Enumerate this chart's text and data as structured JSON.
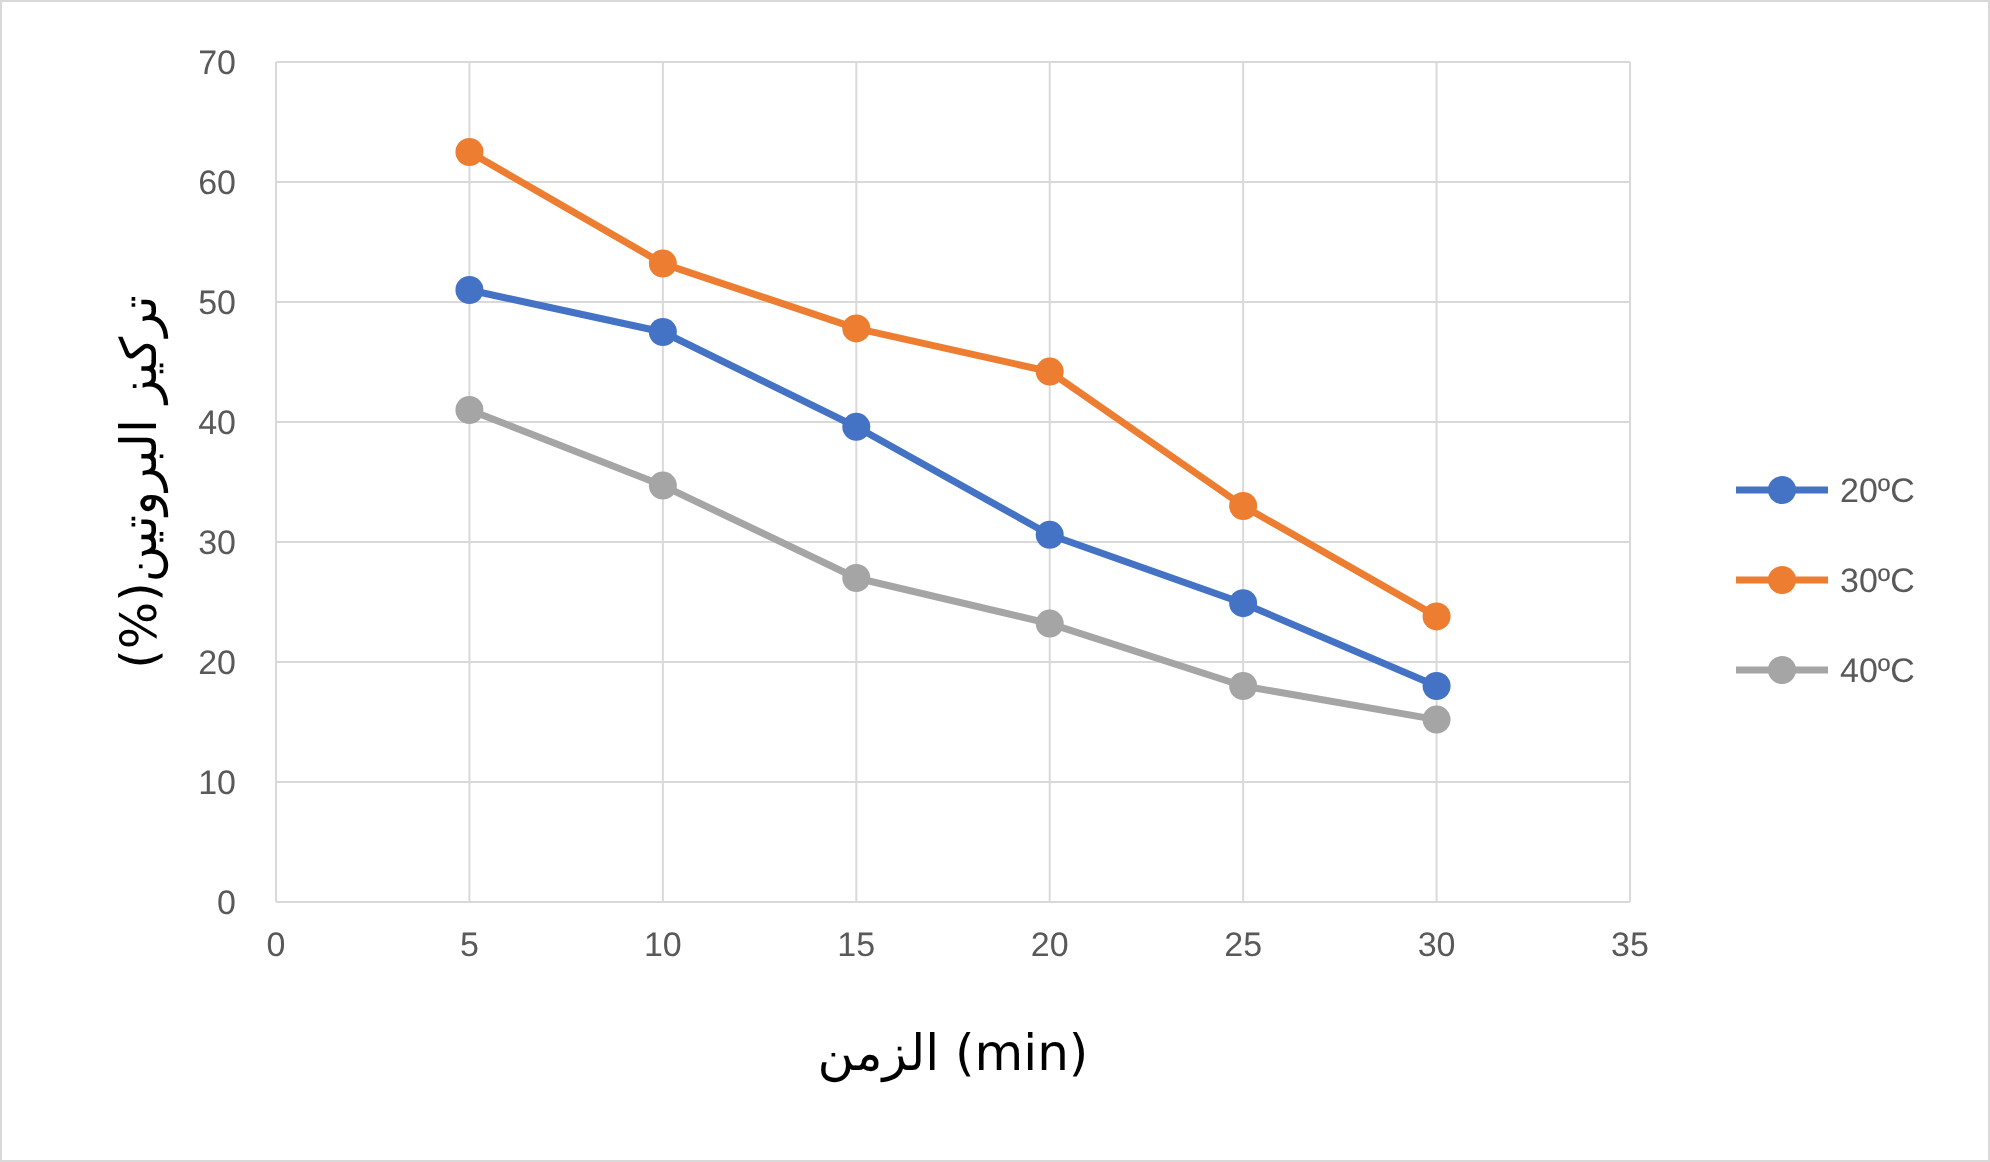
{
  "chart_data": {
    "type": "line",
    "xlabel": "الزمن (min)",
    "ylabel": "تركيز البروتين(%)",
    "x": [
      5,
      10,
      15,
      20,
      25,
      30
    ],
    "series": [
      {
        "name": "20ºC",
        "color": "#4472c4",
        "values": [
          51,
          47.5,
          39.6,
          30.6,
          24.9,
          18
        ]
      },
      {
        "name": "30ºC",
        "color": "#ed7d31",
        "values": [
          62.5,
          53.2,
          47.8,
          44.2,
          33,
          23.8
        ]
      },
      {
        "name": "40ºC",
        "color": "#a5a5a5",
        "values": [
          41,
          34.7,
          27,
          23.2,
          18,
          15.2
        ]
      }
    ],
    "xlim": [
      0,
      35
    ],
    "xticks": [
      0,
      5,
      10,
      15,
      20,
      25,
      30,
      35
    ],
    "ylim": [
      0,
      70
    ],
    "yticks": [
      0,
      10,
      20,
      30,
      40,
      50,
      60,
      70
    ],
    "grid": true,
    "legend": "right",
    "marker": "circle",
    "line_style": "solid"
  }
}
